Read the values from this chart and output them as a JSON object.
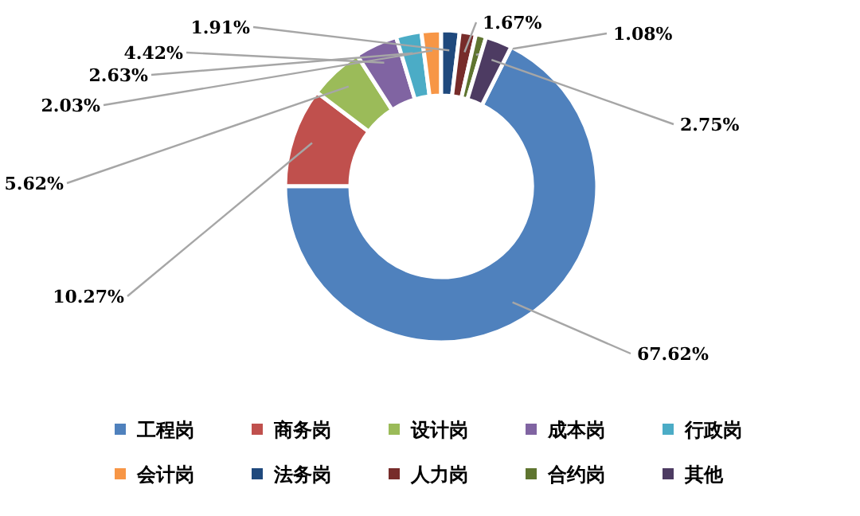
{
  "chart_data": {
    "type": "donut",
    "legend": "bottom",
    "categories": [
      "工程岗",
      "商务岗",
      "设计岗",
      "成本岗",
      "行政岗",
      "会计岗",
      "法务岗",
      "人力岗",
      "合约岗",
      "其他"
    ],
    "values": [
      67.62,
      10.27,
      5.62,
      4.42,
      2.63,
      2.03,
      1.91,
      1.67,
      1.08,
      2.75
    ],
    "value_labels": [
      "67.62%",
      "10.27%",
      "5.62%",
      "4.42%",
      "2.63%",
      "2.03%",
      "1.91%",
      "1.67%",
      "1.08%",
      "2.75%"
    ],
    "colors": [
      "#4f81bd",
      "#c0504d",
      "#9bbb59",
      "#8064a2",
      "#4bacc6",
      "#f79646",
      "#1f497d",
      "#772c2a",
      "#5f7530",
      "#4d3b62"
    ]
  }
}
